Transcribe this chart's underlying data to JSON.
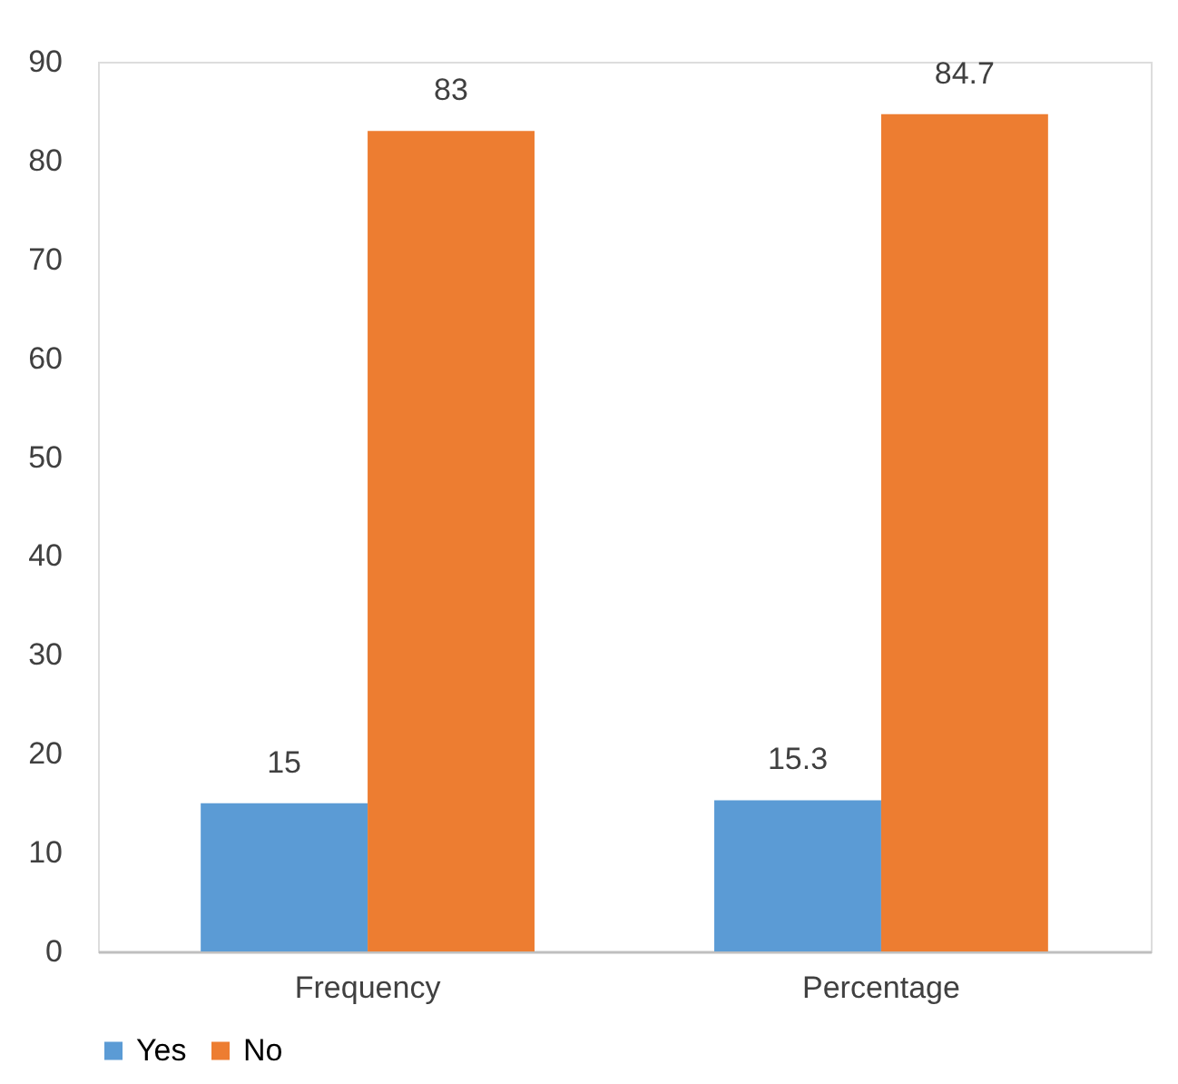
{
  "chart_data": {
    "type": "bar",
    "categories": [
      "Frequency",
      "Percentage"
    ],
    "series": [
      {
        "name": "Yes",
        "color": "#5b9bd5",
        "values": [
          15,
          15.3
        ]
      },
      {
        "name": "No",
        "color": "#ed7d31",
        "values": [
          83,
          84.7
        ]
      }
    ],
    "ylim": [
      0,
      90
    ],
    "yticks": [
      0,
      10,
      20,
      30,
      40,
      50,
      60,
      70,
      80,
      90
    ],
    "grid": false,
    "legend": "bottom",
    "data_labels": true
  }
}
